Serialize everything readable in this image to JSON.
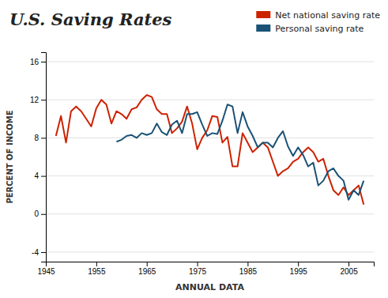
{
  "chart_data": {
    "type": "line",
    "title": "U.S. Saving Rates",
    "xlabel": "ANNUAL DATA",
    "ylabel": "PERCENT OF INCOME",
    "x": [
      1947,
      1948,
      1949,
      1950,
      1951,
      1952,
      1953,
      1954,
      1955,
      1956,
      1957,
      1958,
      1959,
      1960,
      1961,
      1962,
      1963,
      1964,
      1965,
      1966,
      1967,
      1968,
      1969,
      1970,
      1971,
      1972,
      1973,
      1974,
      1975,
      1976,
      1977,
      1978,
      1979,
      1980,
      1981,
      1982,
      1983,
      1984,
      1985,
      1986,
      1987,
      1988,
      1989,
      1990,
      1991,
      1992,
      1993,
      1994,
      1995,
      1996,
      1997,
      1998,
      1999,
      2000,
      2001,
      2002,
      2003,
      2004,
      2005,
      2006,
      2007,
      2008
    ],
    "series": [
      {
        "name": "Net national saving rate",
        "color": "#cc2200",
        "values": [
          8.2,
          10.3,
          7.5,
          10.8,
          11.3,
          10.8,
          10.0,
          9.2,
          11.1,
          12.0,
          11.5,
          9.5,
          10.8,
          10.5,
          10.0,
          11.0,
          11.2,
          12.0,
          12.5,
          12.3,
          11.0,
          10.5,
          10.5,
          8.5,
          9.0,
          9.7,
          11.3,
          9.5,
          6.8,
          8.0,
          8.8,
          10.3,
          10.2,
          7.5,
          8.1,
          5.0,
          5.0,
          8.5,
          7.5,
          6.5,
          7.0,
          7.5,
          7.0,
          5.5,
          4.0,
          4.5,
          4.8,
          5.5,
          5.8,
          6.5,
          7.0,
          6.5,
          5.5,
          5.8,
          4.0,
          2.5,
          2.0,
          2.8,
          2.0,
          2.5,
          3.0,
          1.0
        ]
      },
      {
        "name": "Personal saving rate",
        "color": "#1a5276",
        "values": [
          null,
          null,
          null,
          null,
          null,
          null,
          null,
          null,
          null,
          null,
          null,
          null,
          7.6,
          7.8,
          8.2,
          8.3,
          8.0,
          8.5,
          8.3,
          8.5,
          9.5,
          8.6,
          8.3,
          9.4,
          9.8,
          8.5,
          10.5,
          10.5,
          10.7,
          9.4,
          8.2,
          8.5,
          8.4,
          9.8,
          11.5,
          11.3,
          8.5,
          10.7,
          9.2,
          8.2,
          7.0,
          7.5,
          7.5,
          7.0,
          8.0,
          8.7,
          7.1,
          6.1,
          7.0,
          6.2,
          5.0,
          5.4,
          3.0,
          3.5,
          4.5,
          4.8,
          4.0,
          3.5,
          1.5,
          2.5,
          2.0,
          3.5
        ]
      }
    ],
    "xlim": [
      1945,
      2010
    ],
    "ylim": [
      -5,
      17
    ],
    "xticks": [
      1945,
      1955,
      1965,
      1975,
      1985,
      1995,
      2005
    ],
    "yticks": [
      -4,
      0,
      4,
      8,
      12,
      16
    ],
    "grid": true,
    "legend": "top-right"
  }
}
